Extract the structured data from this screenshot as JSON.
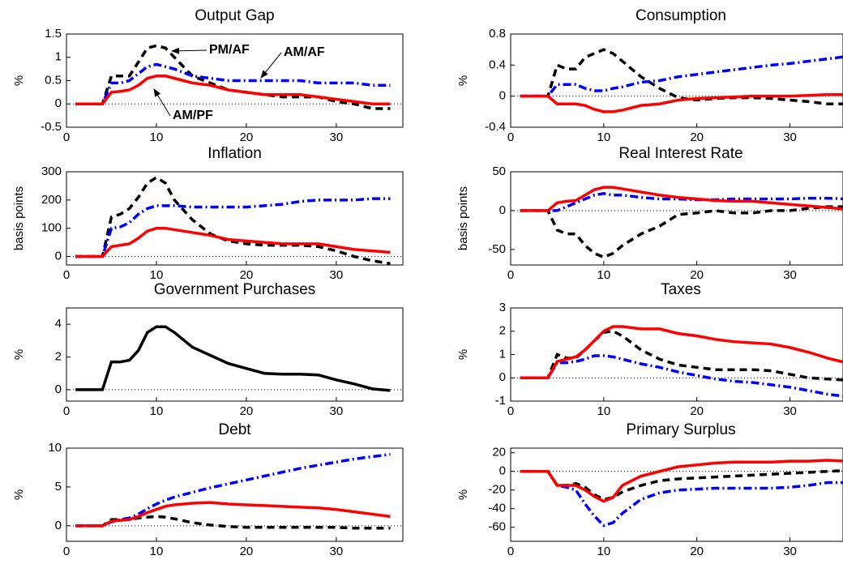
{
  "chart_data": [
    {
      "type": "line",
      "title": "Output Gap",
      "ylabel": "%",
      "x": [
        1,
        2,
        3,
        4,
        5,
        6,
        7,
        8,
        9,
        10,
        11,
        12,
        14,
        16,
        18,
        20,
        22,
        24,
        26,
        28,
        30,
        32,
        34,
        36
      ],
      "xlim": [
        0,
        37.4
      ],
      "xticks": [
        0,
        10,
        20,
        30
      ],
      "ylim": [
        -0.5,
        1.5
      ],
      "yticks": [
        -0.5,
        0,
        0.5,
        1,
        1.5
      ],
      "annotations": [
        "PM/AF",
        "AM/AF",
        "AM/PF"
      ],
      "series": [
        {
          "color": "#000000",
          "dash": "dashed",
          "values": [
            0,
            0,
            0,
            0,
            0.6,
            0.6,
            0.6,
            0.9,
            1.2,
            1.25,
            1.2,
            1.0,
            0.6,
            0.45,
            0.3,
            0.25,
            0.2,
            0.15,
            0.15,
            0.15,
            0.05,
            0,
            -0.1,
            -0.1
          ]
        },
        {
          "color": "#0000ff",
          "dash": "dashdot",
          "values": [
            0,
            0,
            0,
            0,
            0.45,
            0.45,
            0.5,
            0.65,
            0.8,
            0.85,
            0.8,
            0.75,
            0.6,
            0.55,
            0.5,
            0.5,
            0.5,
            0.5,
            0.5,
            0.45,
            0.45,
            0.45,
            0.4,
            0.4
          ]
        },
        {
          "color": "#ff0000",
          "dash": "solid",
          "values": [
            0,
            0,
            0,
            0,
            0.25,
            0.27,
            0.3,
            0.4,
            0.55,
            0.6,
            0.6,
            0.55,
            0.45,
            0.4,
            0.3,
            0.25,
            0.2,
            0.2,
            0.2,
            0.15,
            0.1,
            0.05,
            0,
            0
          ]
        }
      ]
    },
    {
      "type": "line",
      "title": "Consumption",
      "ylabel": "%",
      "x": [
        1,
        2,
        3,
        4,
        5,
        6,
        7,
        8,
        9,
        10,
        11,
        12,
        14,
        16,
        18,
        20,
        22,
        24,
        26,
        28,
        30,
        32,
        34,
        36
      ],
      "xlim": [
        0,
        35.7
      ],
      "xticks": [
        0,
        10,
        20,
        30
      ],
      "ylim": [
        -0.4,
        0.8
      ],
      "yticks": [
        -0.4,
        0,
        0.4,
        0.8
      ],
      "series": [
        {
          "color": "#000000",
          "dash": "dashed",
          "values": [
            0,
            0,
            0,
            0,
            0.4,
            0.35,
            0.35,
            0.5,
            0.55,
            0.6,
            0.55,
            0.45,
            0.25,
            0.1,
            -0.02,
            -0.05,
            -0.03,
            -0.02,
            -0.02,
            -0.03,
            -0.05,
            -0.07,
            -0.1,
            -0.1
          ]
        },
        {
          "color": "#0000ff",
          "dash": "dashdot",
          "values": [
            0,
            0,
            0,
            0,
            0.15,
            0.15,
            0.15,
            0.1,
            0.07,
            0.07,
            0.1,
            0.12,
            0.18,
            0.2,
            0.25,
            0.28,
            0.31,
            0.34,
            0.37,
            0.4,
            0.42,
            0.45,
            0.48,
            0.51
          ]
        },
        {
          "color": "#ff0000",
          "dash": "solid",
          "values": [
            0,
            0,
            0,
            0,
            -0.1,
            -0.1,
            -0.1,
            -0.12,
            -0.17,
            -0.2,
            -0.2,
            -0.18,
            -0.12,
            -0.1,
            -0.05,
            -0.03,
            -0.02,
            -0.01,
            0,
            0,
            0,
            0.01,
            0.02,
            0.02
          ]
        }
      ]
    },
    {
      "type": "line",
      "title": "Inflation",
      "ylabel": "basis points",
      "x": [
        1,
        2,
        3,
        4,
        5,
        6,
        7,
        8,
        9,
        10,
        11,
        12,
        14,
        16,
        18,
        20,
        22,
        24,
        26,
        28,
        30,
        32,
        34,
        36
      ],
      "xlim": [
        0,
        37.4
      ],
      "xticks": [
        0,
        10,
        20,
        30
      ],
      "ylim": [
        -30,
        300
      ],
      "yticks": [
        0,
        100,
        200,
        300
      ],
      "series": [
        {
          "color": "#000000",
          "dash": "dashed",
          "values": [
            0,
            0,
            0,
            0,
            140,
            150,
            170,
            210,
            260,
            280,
            260,
            200,
            130,
            80,
            55,
            45,
            40,
            40,
            40,
            35,
            20,
            0,
            -15,
            -25
          ]
        },
        {
          "color": "#0000ff",
          "dash": "dashdot",
          "values": [
            0,
            0,
            0,
            0,
            100,
            105,
            120,
            150,
            170,
            180,
            180,
            180,
            175,
            175,
            175,
            175,
            180,
            185,
            195,
            200,
            200,
            200,
            205,
            205
          ]
        },
        {
          "color": "#ff0000",
          "dash": "solid",
          "values": [
            0,
            0,
            0,
            0,
            35,
            40,
            45,
            65,
            90,
            100,
            100,
            95,
            85,
            75,
            60,
            55,
            50,
            45,
            45,
            45,
            35,
            25,
            20,
            15
          ]
        }
      ]
    },
    {
      "type": "line",
      "title": "Real Interest Rate",
      "ylabel": "basis points",
      "x": [
        1,
        2,
        3,
        4,
        5,
        6,
        7,
        8,
        9,
        10,
        11,
        12,
        14,
        16,
        18,
        20,
        22,
        24,
        26,
        28,
        30,
        32,
        34,
        36
      ],
      "xlim": [
        0,
        35.7
      ],
      "xticks": [
        0,
        10,
        20,
        30
      ],
      "ylim": [
        -70,
        50
      ],
      "yticks": [
        -50,
        0,
        50
      ],
      "series": [
        {
          "color": "#000000",
          "dash": "dashed",
          "values": [
            0,
            0,
            0,
            0,
            -25,
            -30,
            -30,
            -45,
            -55,
            -60,
            -55,
            -45,
            -30,
            -20,
            -5,
            -3,
            0,
            -3,
            -3,
            0,
            0,
            3,
            5,
            5
          ]
        },
        {
          "color": "#0000ff",
          "dash": "dashdot",
          "values": [
            0,
            0,
            0,
            0,
            0,
            5,
            10,
            15,
            20,
            22,
            20,
            20,
            17,
            15,
            15,
            14,
            14,
            15,
            15,
            15,
            15,
            16,
            16,
            15
          ]
        },
        {
          "color": "#ff0000",
          "dash": "solid",
          "values": [
            0,
            0,
            0,
            0,
            10,
            12,
            13,
            20,
            27,
            30,
            30,
            28,
            24,
            20,
            17,
            15,
            13,
            12,
            12,
            10,
            8,
            6,
            4,
            2
          ]
        }
      ]
    },
    {
      "type": "line",
      "title": "Government Purchases",
      "ylabel": "%",
      "x": [
        1,
        2,
        3,
        4,
        5,
        6,
        7,
        8,
        9,
        10,
        11,
        12,
        14,
        16,
        18,
        20,
        22,
        24,
        26,
        28,
        30,
        32,
        34,
        36
      ],
      "xlim": [
        0,
        37.4
      ],
      "xticks": [
        0,
        10,
        20,
        30
      ],
      "ylim": [
        -0.7,
        5
      ],
      "yticks": [
        0,
        2,
        4
      ],
      "series": [
        {
          "color": "#000000",
          "dash": "solid",
          "values": [
            0,
            0,
            0,
            0,
            1.7,
            1.7,
            1.8,
            2.4,
            3.5,
            3.85,
            3.85,
            3.5,
            2.6,
            2.1,
            1.6,
            1.3,
            1.0,
            0.95,
            0.95,
            0.9,
            0.6,
            0.35,
            0.05,
            -0.05
          ]
        }
      ]
    },
    {
      "type": "line",
      "title": "Taxes",
      "ylabel": "%",
      "x": [
        1,
        2,
        3,
        4,
        5,
        6,
        7,
        8,
        9,
        10,
        11,
        12,
        14,
        16,
        18,
        20,
        22,
        24,
        26,
        28,
        30,
        32,
        34,
        36
      ],
      "xlim": [
        0,
        35.7
      ],
      "xticks": [
        0,
        10,
        20,
        30
      ],
      "ylim": [
        -1,
        3
      ],
      "yticks": [
        -1,
        0,
        1,
        2,
        3
      ],
      "series": [
        {
          "color": "#000000",
          "dash": "dashed",
          "values": [
            0,
            0,
            0,
            0,
            1.0,
            0.85,
            0.85,
            1.2,
            1.6,
            1.95,
            2.0,
            1.8,
            1.2,
            0.8,
            0.55,
            0.45,
            0.35,
            0.35,
            0.35,
            0.3,
            0.15,
            0,
            -0.05,
            -0.1
          ]
        },
        {
          "color": "#0000ff",
          "dash": "dashdot",
          "values": [
            0,
            0,
            0,
            0,
            0.65,
            0.65,
            0.7,
            0.8,
            0.95,
            0.95,
            0.9,
            0.8,
            0.6,
            0.45,
            0.25,
            0.1,
            -0.05,
            -0.15,
            -0.2,
            -0.3,
            -0.4,
            -0.55,
            -0.7,
            -0.8
          ]
        },
        {
          "color": "#ff0000",
          "dash": "solid",
          "values": [
            0,
            0,
            0,
            0,
            0.7,
            0.8,
            0.9,
            1.2,
            1.6,
            2.0,
            2.2,
            2.2,
            2.1,
            2.1,
            1.9,
            1.8,
            1.65,
            1.55,
            1.5,
            1.45,
            1.3,
            1.1,
            0.85,
            0.65
          ]
        }
      ]
    },
    {
      "type": "line",
      "title": "Debt",
      "ylabel": "%",
      "x": [
        1,
        2,
        3,
        4,
        5,
        6,
        7,
        8,
        9,
        10,
        11,
        12,
        14,
        16,
        18,
        20,
        22,
        24,
        26,
        28,
        30,
        32,
        34,
        36
      ],
      "xlim": [
        0,
        37.4
      ],
      "xticks": [
        0,
        10,
        20,
        30
      ],
      "ylim": [
        -2,
        10
      ],
      "yticks": [
        0,
        5,
        10
      ],
      "series": [
        {
          "color": "#000000",
          "dash": "dashed",
          "values": [
            0,
            0,
            0,
            0,
            0.8,
            0.8,
            0.8,
            1.0,
            1.1,
            1.2,
            1.1,
            0.9,
            0.4,
            0.1,
            -0.1,
            -0.2,
            -0.2,
            -0.2,
            -0.2,
            -0.2,
            -0.2,
            -0.3,
            -0.3,
            -0.3
          ]
        },
        {
          "color": "#0000ff",
          "dash": "dashdot",
          "values": [
            0,
            0,
            0,
            0,
            0.5,
            0.8,
            1.0,
            1.5,
            2.2,
            2.8,
            3.3,
            3.7,
            4.3,
            4.9,
            5.4,
            5.9,
            6.4,
            6.9,
            7.4,
            7.8,
            8.2,
            8.6,
            8.9,
            9.2
          ]
        },
        {
          "color": "#ff0000",
          "dash": "solid",
          "values": [
            0,
            0,
            0,
            0,
            0.6,
            0.7,
            0.8,
            1.2,
            1.7,
            2.1,
            2.5,
            2.7,
            2.9,
            3.0,
            2.8,
            2.7,
            2.6,
            2.5,
            2.4,
            2.3,
            2.1,
            1.8,
            1.5,
            1.2
          ]
        }
      ]
    },
    {
      "type": "line",
      "title": "Primary Surplus",
      "ylabel": "%",
      "x": [
        1,
        2,
        3,
        4,
        5,
        6,
        7,
        8,
        9,
        10,
        11,
        12,
        14,
        16,
        18,
        20,
        22,
        24,
        26,
        28,
        30,
        32,
        34,
        36
      ],
      "xlim": [
        0,
        35.7
      ],
      "xticks": [
        0,
        10,
        20,
        30
      ],
      "ylim": [
        -75,
        25
      ],
      "yticks": [
        -60,
        -40,
        -20,
        0,
        20
      ],
      "series": [
        {
          "color": "#000000",
          "dash": "dashed",
          "values": [
            0,
            0,
            0,
            0,
            -15,
            -15,
            -13,
            -17,
            -25,
            -30,
            -28,
            -22,
            -15,
            -10,
            -8,
            -7,
            -6,
            -5,
            -4,
            -3,
            -2,
            -1,
            0,
            1
          ]
        },
        {
          "color": "#0000ff",
          "dash": "dashdot",
          "values": [
            0,
            0,
            0,
            0,
            -15,
            -17,
            -20,
            -35,
            -48,
            -58,
            -55,
            -45,
            -30,
            -23,
            -20,
            -19,
            -18,
            -18,
            -18,
            -18,
            -17,
            -15,
            -12,
            -12
          ]
        },
        {
          "color": "#ff0000",
          "dash": "solid",
          "values": [
            0,
            0,
            0,
            0,
            -15,
            -15,
            -15,
            -20,
            -27,
            -32,
            -28,
            -15,
            -5,
            0,
            5,
            7,
            9,
            10,
            10,
            10,
            11,
            11,
            12,
            11
          ]
        }
      ]
    }
  ]
}
